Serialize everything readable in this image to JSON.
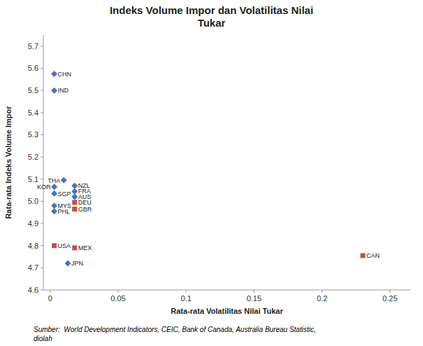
{
  "chart_data": {
    "type": "scatter",
    "title": "Indeks Volume Impor dan Volatilitas Nilai\nTukar",
    "x_label": "Rata-rata Volatilitas Nilai Tukar",
    "y_label": "Rata-rata Indeks Volume Impor",
    "xlim": [
      -0.005,
      0.265
    ],
    "ylim": [
      4.6,
      5.75
    ],
    "xticks": [
      0,
      0.05,
      0.1,
      0.15,
      0.2,
      0.25
    ],
    "yticks": [
      4.6,
      4.7,
      4.8,
      4.9,
      {
        "value": 5.0,
        "label": "5.0"
      },
      5.1,
      5.2,
      5.3,
      5.4,
      5.5,
      5.6,
      5.7
    ],
    "grid": false,
    "series": [
      {
        "color": "#4472C4",
        "marker": "diamond",
        "labels": [
          "CHN",
          "IND",
          "KOR",
          "SGP",
          "MYS",
          "PHL",
          "THA",
          "NZL",
          "FRA",
          "AUS",
          "JPN"
        ],
        "x": [
          0.003,
          0.003,
          0.003,
          0.003,
          0.003,
          0.003,
          0.01,
          0.018,
          0.018,
          0.018,
          0.013
        ],
        "values": [
          5.575,
          5.5,
          5.065,
          5.035,
          4.98,
          4.955,
          5.095,
          5.07,
          5.045,
          5.02,
          4.72
        ]
      },
      {
        "color": "#C0504D",
        "marker": "square",
        "labels": [
          "DEU",
          "GBR",
          "MEX",
          "USA",
          "CAN"
        ],
        "x": [
          0.018,
          0.018,
          0.018,
          0.003,
          0.23
        ],
        "values": [
          4.995,
          4.965,
          4.79,
          4.8,
          4.755
        ]
      }
    ],
    "source": "Sumber:  World Development Indicators, CEIC, Bank of Canada, Australia Bureau Statistic,\ndiolah"
  }
}
